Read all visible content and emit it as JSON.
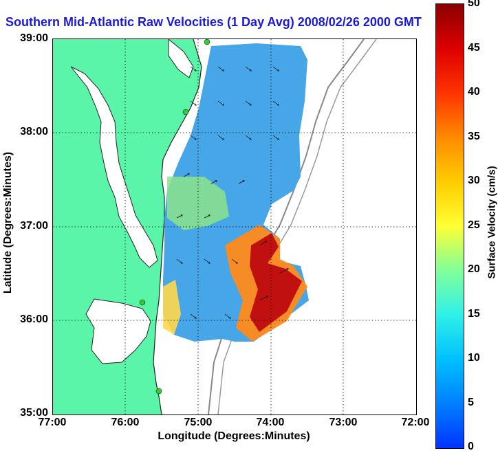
{
  "title": "Southern Mid-Atlantic Raw Velocities (1 Day Avg) 2008/02/26 2000 GMT",
  "map": {
    "x_label": "Longitude (Degrees:Minutes)",
    "y_label": "Latitude (Degrees:Minutes)",
    "x_ticks": [
      "77:00",
      "76:00",
      "75:00",
      "74:00",
      "73:00",
      "72:00"
    ],
    "y_ticks": [
      "39:00",
      "38:00",
      "37:00",
      "36:00",
      "35:00"
    ],
    "land_color": "#5af5a8",
    "water_color": "#ffffff",
    "station_color": "#33cc33"
  },
  "colorbar": {
    "label": "Surface Velocity (cm/s)",
    "ticks": [
      "50",
      "45",
      "40",
      "35",
      "30",
      "25",
      "20",
      "15",
      "10",
      "5",
      "0"
    ],
    "min": 0,
    "max": 50
  }
}
